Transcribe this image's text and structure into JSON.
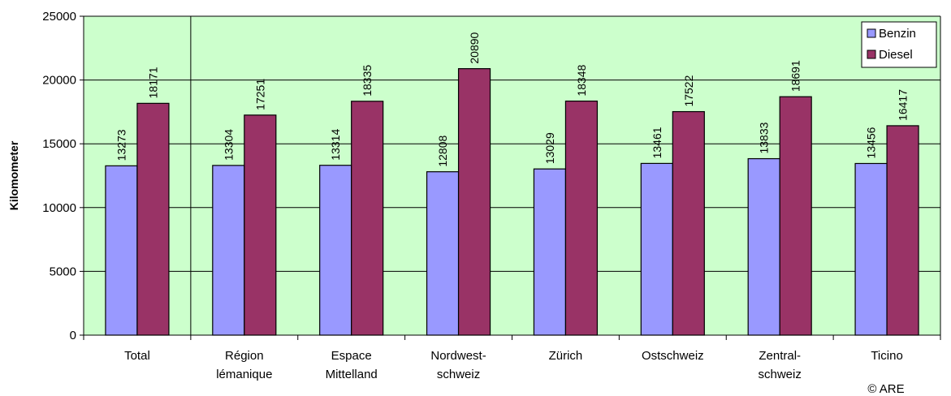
{
  "chart_data": {
    "type": "bar",
    "categories": [
      [
        "Total"
      ],
      [
        "Région",
        "lémanique"
      ],
      [
        "Espace",
        "Mittelland"
      ],
      [
        "Nordwest-",
        "schweiz"
      ],
      [
        "Zürich"
      ],
      [
        "Ostschweiz"
      ],
      [
        "Zentral-",
        "schweiz"
      ],
      [
        "Ticino"
      ]
    ],
    "series": [
      {
        "name": "Benzin",
        "color": "#9999ff",
        "values": [
          13273,
          13304,
          13314,
          12808,
          13029,
          13461,
          13833,
          13456
        ]
      },
      {
        "name": "Diesel",
        "color": "#993366",
        "values": [
          18171,
          17251,
          18335,
          20890,
          18348,
          17522,
          18691,
          16417
        ]
      }
    ],
    "ylabel": "Kilomometer",
    "ylim": [
      0,
      25000
    ],
    "yticks": [
      0,
      5000,
      10000,
      15000,
      20000,
      25000
    ],
    "grid": true,
    "plot_background": "#ccffcc",
    "legend_position": "top-right",
    "separator_after_first_category": true
  },
  "copyright": "© ARE"
}
